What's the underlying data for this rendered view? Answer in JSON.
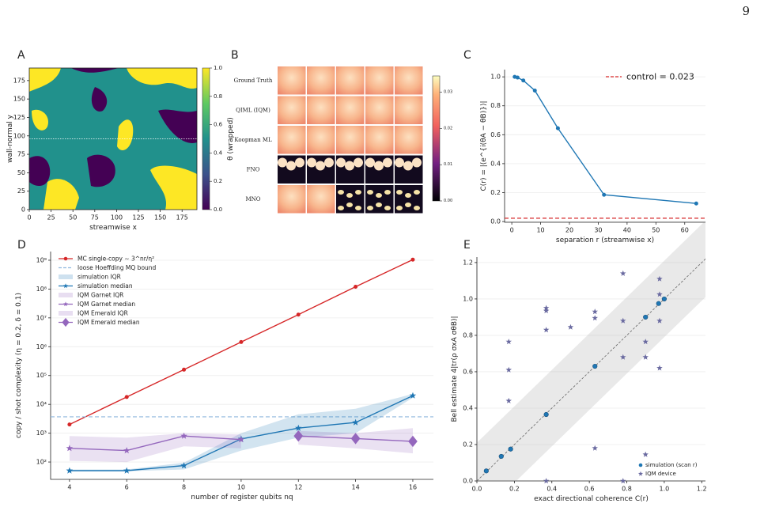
{
  "page_number": "9",
  "chart_data": [
    {
      "type": "heatmap",
      "panel": "A",
      "xlabel": "streamwise x",
      "ylabel": "wall-normal y",
      "xlim": [
        0,
        192
      ],
      "ylim": [
        0,
        192
      ],
      "xticks": [
        0,
        25,
        50,
        75,
        100,
        125,
        150,
        175
      ],
      "yticks": [
        0,
        25,
        50,
        75,
        100,
        125,
        150,
        175
      ],
      "slice_y": 96,
      "colorbar": {
        "label": "θ (wrapped)",
        "lim": [
          0,
          1
        ],
        "ticks": [
          {
            "value": 0,
            "label": "0.0"
          },
          0.2,
          0.4,
          0.6,
          {
            "value": 0.8,
            "label": "0.8"
          },
          {
            "value": 1,
            "label": "1.0"
          }
        ]
      }
    },
    {
      "type": "image_grid",
      "panel": "B",
      "rows": [
        "Ground Truth",
        "QIML (IQM)",
        "Koopman ML",
        "FNO",
        "MNO"
      ],
      "colorbar": {
        "lim": [
          0,
          0.0345
        ],
        "ticks": [
          {
            "value": 0,
            "label": "0.00"
          },
          0.01,
          0.02,
          0.03
        ]
      }
    },
    {
      "type": "line",
      "panel": "C",
      "xlabel": "separation r (streamwise x)",
      "ylabel": "C(r) = |⟨e^{i(θA − θB)}⟩|",
      "x": [
        1,
        2,
        4,
        8,
        16,
        32,
        64
      ],
      "xlim": [
        -2.5,
        67.2
      ],
      "ylim": [
        -0.005,
        1.05
      ],
      "xticks": [
        0,
        10,
        20,
        30,
        40,
        50,
        60
      ],
      "yticks": [
        {
          "value": 0,
          "label": "0.0"
        },
        0.2,
        0.4,
        0.6,
        0.8,
        {
          "value": 1,
          "label": "1.0"
        }
      ],
      "grid": true,
      "legend": "upper right",
      "series": [
        {
          "color": "#1f77b4",
          "marker": "circle",
          "values": [
            1.0,
            0.995,
            0.975,
            0.905,
            0.645,
            0.185,
            0.125
          ]
        },
        {
          "name": "control = 0.023",
          "kind": "hline",
          "color": "#d62728",
          "value": 0.023
        }
      ]
    },
    {
      "type": "line",
      "panel": "D",
      "xlabel": "number of register qubits nq",
      "ylabel": "copy / shot complexity (η = 0.2, δ = 0.1)",
      "x": [
        4,
        6,
        8,
        10,
        12,
        14,
        16
      ],
      "xlim": [
        3.34,
        16.72
      ],
      "ylim": [
        25,
        2000000000
      ],
      "log_y": true,
      "xticks": [
        4,
        6,
        8,
        10,
        12,
        14,
        16
      ],
      "yticks": [
        {
          "value": 100,
          "label": "10²"
        },
        {
          "value": 1000,
          "label": "10³"
        },
        {
          "value": 10000,
          "label": "10⁴"
        },
        {
          "value": 100000,
          "label": "10⁵"
        },
        {
          "value": 1000000,
          "label": "10⁶"
        },
        {
          "value": 10000000,
          "label": "10⁷"
        },
        {
          "value": 100000000,
          "label": "10⁸"
        },
        {
          "value": 1000000000,
          "label": "10⁹"
        }
      ],
      "grid": true,
      "legend": "upper left",
      "series": [
        {
          "name": "MC single-copy  ∼ 3^nr/η²",
          "color": "#d62728",
          "marker": "circle",
          "values": [
            2000,
            18000,
            160000,
            1450000,
            13000000,
            120000000,
            1050000000
          ]
        },
        {
          "name": "loose Hoeffding MQ bound",
          "kind": "hline",
          "color": "#8fb8de",
          "value": 3700
        },
        {
          "name": "simulation IQR",
          "kind": "band",
          "color": "#1f77b4",
          "low": [
            48,
            48,
            55,
            250,
            700,
            1000,
            17000
          ],
          "high": [
            55,
            55,
            95,
            1000,
            4500,
            7000,
            23000
          ]
        },
        {
          "name": "simulation median",
          "color": "#1f77b4",
          "marker": "star",
          "values": [
            50,
            50,
            75,
            630,
            1500,
            2350,
            20000
          ]
        },
        {
          "name": "IQM Garnet IQR",
          "kind": "band",
          "color": "#9467bd",
          "low": [
            110,
            100,
            350,
            300,
            null,
            null,
            null
          ],
          "high": [
            800,
            700,
            1000,
            900,
            null,
            null,
            null
          ]
        },
        {
          "name": "IQM Garnet median",
          "color": "#9467bd",
          "marker": "star",
          "values": [
            300,
            250,
            800,
            600,
            null,
            null,
            null
          ]
        },
        {
          "name": "IQM Emerald IQR",
          "kind": "band",
          "color": "#9467bd",
          "low": [
            null,
            null,
            null,
            null,
            400,
            300,
            200
          ],
          "high": [
            null,
            null,
            null,
            null,
            1200,
            1000,
            1500
          ]
        },
        {
          "name": "IQM Emerald median",
          "color": "#9467bd",
          "marker": "diamond",
          "values": [
            null,
            null,
            null,
            null,
            800,
            650,
            520
          ]
        }
      ]
    },
    {
      "type": "scatter",
      "panel": "E",
      "xlabel": "exact directional coherence C(r)",
      "ylabel": "Bell estimate 4|tr(ρ σxA σθB)|",
      "xlim": [
        0,
        1.22
      ],
      "ylim": [
        0,
        1.23
      ],
      "xticks": [
        {
          "value": 0,
          "label": "0.0"
        },
        0.2,
        0.4,
        0.6,
        0.8,
        {
          "value": 1,
          "label": "1.0"
        },
        1.2
      ],
      "yticks": [
        {
          "value": 0,
          "label": "0.0"
        },
        0.2,
        0.4,
        0.6,
        0.8,
        {
          "value": 1,
          "label": "1.0"
        },
        1.2
      ],
      "grid": true,
      "legend": "lower right",
      "band_halfwidth": 0.21,
      "series": [
        {
          "name": "simulation (scan r)",
          "color": "#1f77b4",
          "marker": "circle",
          "x": [
            0.05,
            0.13,
            0.18,
            0.37,
            0.63,
            0.9,
            0.97,
            1.0
          ],
          "values": [
            0.055,
            0.135,
            0.175,
            0.365,
            0.63,
            0.9,
            0.975,
            1.0
          ]
        },
        {
          "name": "IQM device",
          "color": "#6a6aa0",
          "marker": "star",
          "x": [
            0.17,
            0.17,
            0.17,
            0.37,
            0.37,
            0.37,
            0.37,
            0.5,
            0.63,
            0.63,
            0.63,
            0.78,
            0.78,
            0.78,
            0.78,
            0.9,
            0.9,
            0.9,
            0.975,
            0.975,
            0.975,
            0.975
          ],
          "values": [
            0.765,
            0.61,
            0.44,
            0.95,
            0.935,
            0.83,
            0.0,
            0.845,
            0.93,
            0.895,
            0.18,
            0.88,
            0.68,
            1.14,
            0.0,
            0.765,
            0.68,
            0.145,
            1.11,
            1.025,
            0.88,
            0.62
          ]
        }
      ]
    }
  ]
}
